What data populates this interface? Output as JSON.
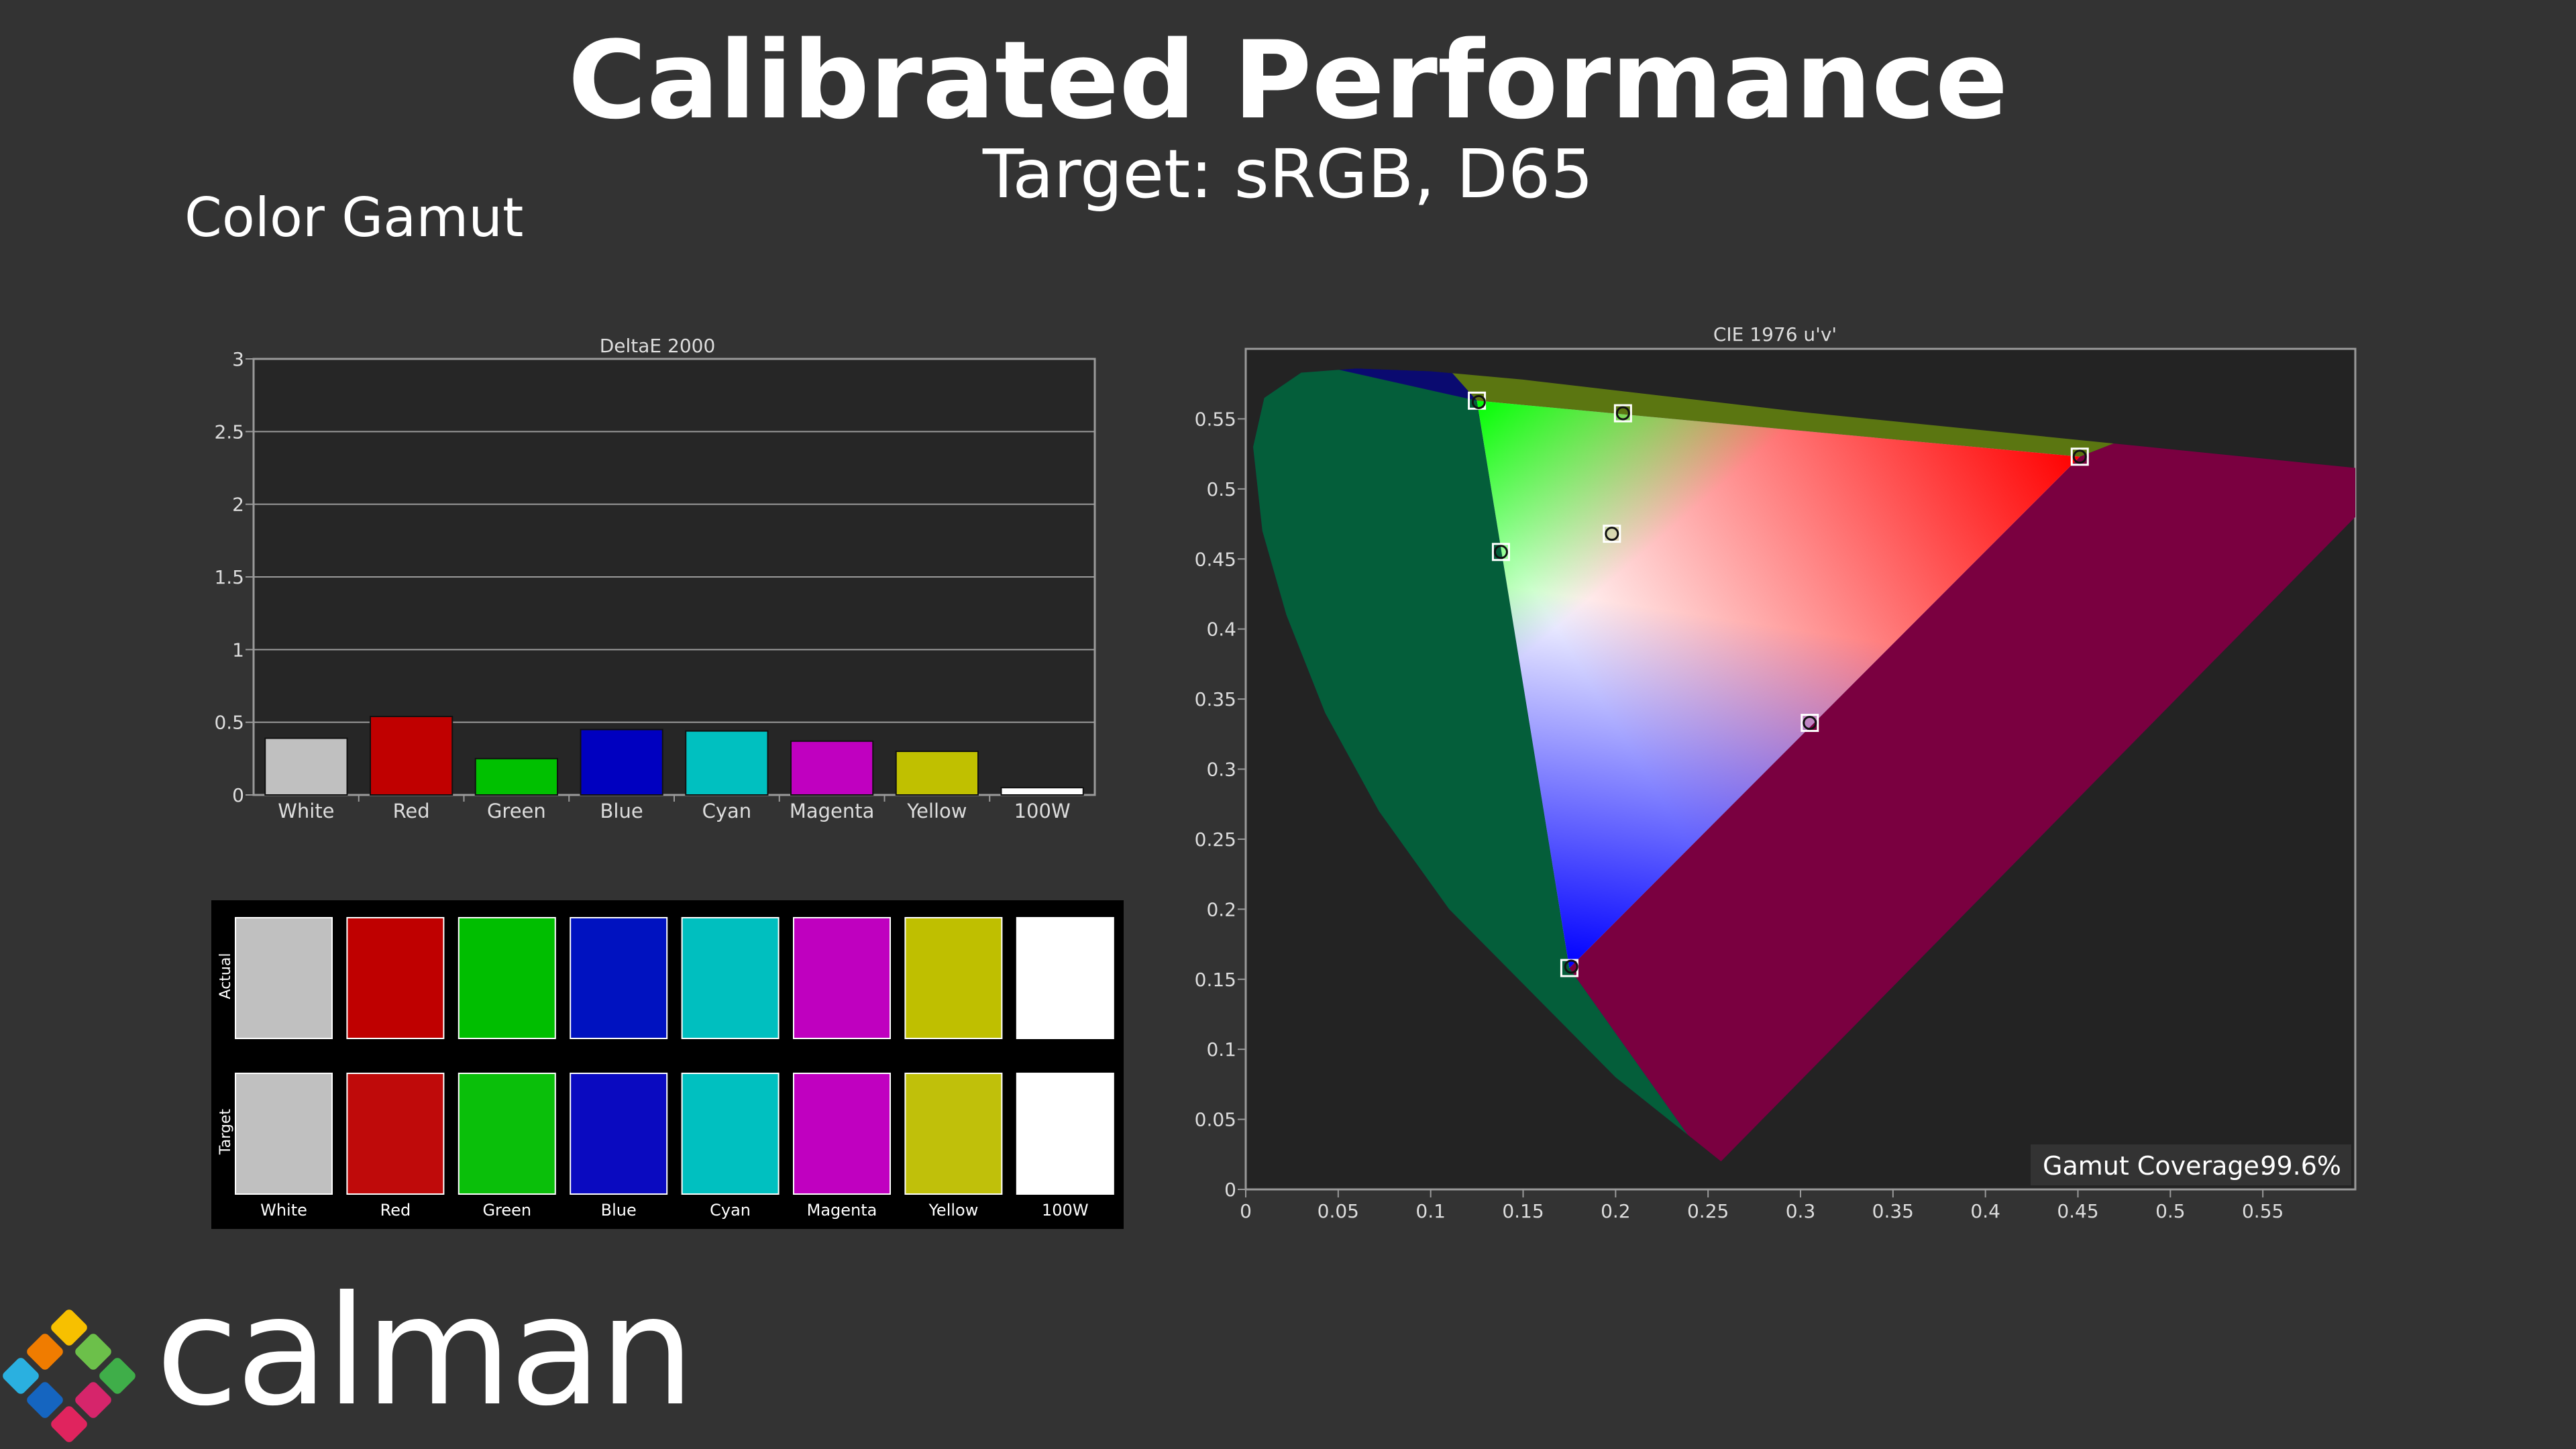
{
  "header": {
    "title": "Calibrated Performance",
    "subtitle": "Target: sRGB, D65",
    "section": "Color Gamut"
  },
  "brand": {
    "name": "calman"
  },
  "chart_data": [
    {
      "type": "bar",
      "title": "DeltaE 2000",
      "categories": [
        "White",
        "Red",
        "Green",
        "Blue",
        "Cyan",
        "Magenta",
        "Yellow",
        "100W"
      ],
      "values": [
        0.39,
        0.54,
        0.25,
        0.45,
        0.44,
        0.37,
        0.3,
        0.05
      ],
      "colors": [
        "#c0c0c0",
        "#c00000",
        "#00c000",
        "#0000c0",
        "#00c0c0",
        "#c000c0",
        "#c0c000",
        "#ffffff"
      ],
      "ylim": [
        0,
        3
      ],
      "yticks": [
        "0",
        "0.5",
        "1",
        "1.5",
        "2",
        "2.5",
        "3"
      ],
      "grid": true
    },
    {
      "type": "table",
      "title": "",
      "row_labels": [
        "Actual",
        "Target"
      ],
      "columns": [
        "White",
        "Red",
        "Green",
        "Blue",
        "Cyan",
        "Magenta",
        "Yellow",
        "100W"
      ],
      "actual_colors": [
        "#c0c0c0",
        "#bf0000",
        "#00be00",
        "#0012c0",
        "#00bfbf",
        "#bf00bf",
        "#bfbf00",
        "#ffffff"
      ],
      "target_colors": [
        "#c0c0c0",
        "#bf0a0a",
        "#0abf0a",
        "#0a0ac0",
        "#00c0c0",
        "#c000c0",
        "#c0c00a",
        "#ffffff"
      ]
    },
    {
      "type": "scatter",
      "title": "CIE 1976 u'v'",
      "xlim": [
        0,
        0.6
      ],
      "ylim": [
        0,
        0.6
      ],
      "xticks": [
        "0",
        "0.05",
        "0.1",
        "0.15",
        "0.2",
        "0.25",
        "0.3",
        "0.35",
        "0.4",
        "0.45",
        "0.5",
        "0.55"
      ],
      "yticks": [
        "0",
        "0.05",
        "0.1",
        "0.15",
        "0.2",
        "0.25",
        "0.3",
        "0.35",
        "0.4",
        "0.45",
        "0.5",
        "0.55"
      ],
      "target_points": [
        {
          "name": "Red",
          "x": 0.451,
          "y": 0.523
        },
        {
          "name": "Green",
          "x": 0.125,
          "y": 0.563
        },
        {
          "name": "Blue",
          "x": 0.175,
          "y": 0.158
        },
        {
          "name": "White",
          "x": 0.198,
          "y": 0.468
        },
        {
          "name": "Cyan",
          "x": 0.138,
          "y": 0.455
        },
        {
          "name": "Magenta",
          "x": 0.305,
          "y": 0.333
        },
        {
          "name": "Yellow",
          "x": 0.204,
          "y": 0.554
        }
      ],
      "actual_points": [
        {
          "name": "Red",
          "x": 0.451,
          "y": 0.523
        },
        {
          "name": "Green",
          "x": 0.126,
          "y": 0.562
        },
        {
          "name": "Blue",
          "x": 0.176,
          "y": 0.159
        },
        {
          "name": "White",
          "x": 0.198,
          "y": 0.468
        },
        {
          "name": "Cyan",
          "x": 0.138,
          "y": 0.455
        },
        {
          "name": "Magenta",
          "x": 0.305,
          "y": 0.333
        },
        {
          "name": "Yellow",
          "x": 0.204,
          "y": 0.554
        }
      ],
      "locus": [
        [
          0.257,
          0.02
        ],
        [
          0.2,
          0.08
        ],
        [
          0.155,
          0.14
        ],
        [
          0.11,
          0.2
        ],
        [
          0.072,
          0.27
        ],
        [
          0.043,
          0.34
        ],
        [
          0.022,
          0.41
        ],
        [
          0.009,
          0.47
        ],
        [
          0.004,
          0.53
        ],
        [
          0.01,
          0.565
        ],
        [
          0.03,
          0.583
        ],
        [
          0.06,
          0.586
        ],
        [
          0.1,
          0.584
        ],
        [
          0.15,
          0.578
        ],
        [
          0.3,
          0.555
        ],
        [
          0.45,
          0.535
        ],
        [
          0.6,
          0.515
        ],
        [
          0.6,
          0.48
        ],
        [
          0.257,
          0.02
        ]
      ],
      "annotation_label": "Gamut Coverage:",
      "annotation_value": "99.6%"
    }
  ]
}
